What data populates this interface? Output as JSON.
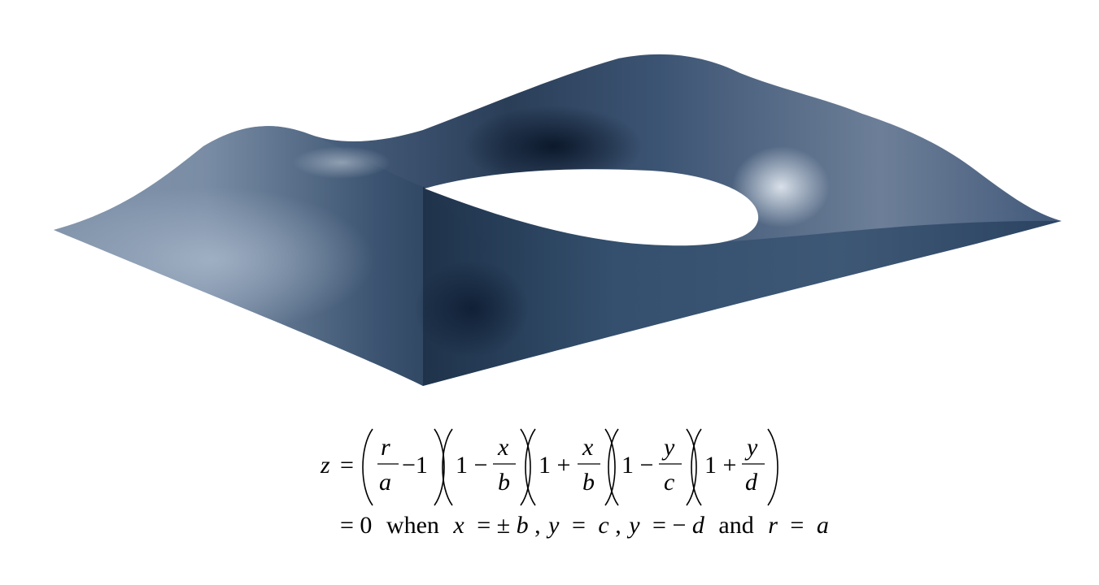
{
  "surface": {
    "colors": {
      "base": "#3d5573",
      "dark": "#0d1c30",
      "light": "#a7b5c8",
      "highlight": "#dfe6ee"
    }
  },
  "equation": {
    "line1": {
      "lhs": "z",
      "equals": "=",
      "factor1": {
        "num": "r",
        "den": "a",
        "tail": "−1"
      },
      "factor2": {
        "lead": "1 −",
        "num": "x",
        "den": "b"
      },
      "factor3": {
        "lead": "1 +",
        "num": "x",
        "den": "b"
      },
      "factor4": {
        "lead": "1 −",
        "num": "y",
        "den": "c"
      },
      "factor5": {
        "lead": "1 +",
        "num": "y",
        "den": "d"
      }
    },
    "line2": {
      "eq0": "= 0",
      "when": "when",
      "cond1_var": "x",
      "cond1_rel": "= ±",
      "cond1_val": "b",
      "comma1": ",",
      "cond2_var": "y",
      "cond2_rel": "=",
      "cond2_val": "c",
      "comma2": ",",
      "cond3_var": "y",
      "cond3_rel": "= −",
      "cond3_val": "d",
      "and": "and",
      "cond4_var": "r",
      "cond4_rel": "=",
      "cond4_val": "a"
    }
  }
}
